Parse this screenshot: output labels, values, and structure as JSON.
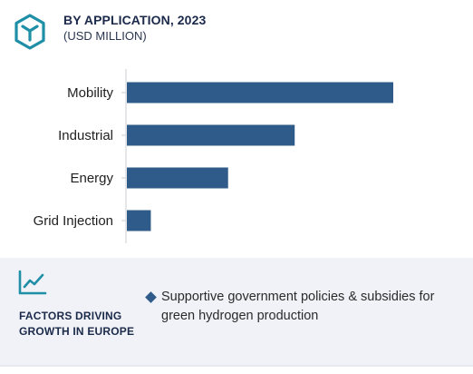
{
  "header": {
    "title": "BY APPLICATION, 2023",
    "subtitle": "(USD MILLION)",
    "icon": "cube-icon",
    "accent_color": "#1e8fa6"
  },
  "chart_data": {
    "type": "bar",
    "orientation": "horizontal",
    "categories": [
      "Mobility",
      "Industrial",
      "Energy",
      "Grid Injection"
    ],
    "values": [
      100,
      63,
      38,
      9
    ],
    "title": "BY APPLICATION, 2023",
    "subtitle": "(USD MILLION)",
    "xlabel": "",
    "ylabel": "",
    "xlim": [
      0,
      100
    ],
    "grid": false,
    "legend": "none",
    "bar_color": "#2e5b8a",
    "axis_color": "#c8ccd4"
  },
  "factors": {
    "icon": "trend-chart-icon",
    "title": "FACTORS DRIVING GROWTH IN EUROPE",
    "items": [
      "Supportive government policies & subsidies for green hydrogen production"
    ],
    "background_color": "#f0f2f7"
  }
}
